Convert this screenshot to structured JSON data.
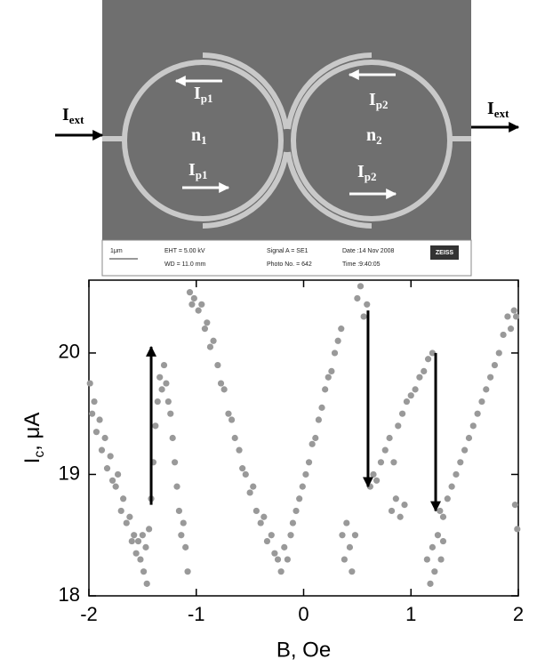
{
  "sem_image": {
    "labels": [
      {
        "main": "I",
        "sub": "ext"
      },
      {
        "main": "I",
        "sub": "p1"
      },
      {
        "main": "n",
        "sub": "1"
      },
      {
        "main": "I",
        "sub": "p1"
      },
      {
        "main": "I",
        "sub": "p2"
      },
      {
        "main": "n",
        "sub": "2"
      },
      {
        "main": "I",
        "sub": "p2"
      },
      {
        "main": "I",
        "sub": "ext"
      }
    ],
    "info": [
      "1μm",
      "EHT =  5.00 kV",
      "WD = 11.0 mm",
      "Signal A = SE1",
      "Photo No. = 642",
      "Date :14 Nov 2008",
      "Time :9:40:05",
      "ZEISS"
    ]
  },
  "chart_data": {
    "type": "scatter",
    "xlabel": "B, Oe",
    "ylabel": {
      "main": "I",
      "sub": "c",
      "rest": ", μA"
    },
    "color": "#999999",
    "xlim": [
      -2,
      2
    ],
    "ylim": [
      18,
      20.6
    ],
    "xticks": [
      -2,
      -1,
      0,
      1,
      2
    ],
    "yticks": [
      18,
      19,
      20
    ],
    "x": [
      -1.99,
      -1.97,
      -1.95,
      -1.93,
      -1.9,
      -1.88,
      -1.85,
      -1.83,
      -1.8,
      -1.78,
      -1.75,
      -1.73,
      -1.7,
      -1.68,
      -1.65,
      -1.62,
      -1.6,
      -1.58,
      -1.56,
      -1.54,
      -1.52,
      -1.5,
      -1.49,
      -1.47,
      -1.46,
      -1.44,
      -1.42,
      -1.4,
      -1.38,
      -1.36,
      -1.34,
      -1.32,
      -1.3,
      -1.28,
      -1.26,
      -1.24,
      -1.22,
      -1.2,
      -1.18,
      -1.16,
      -1.14,
      -1.12,
      -1.1,
      -1.08,
      -1.06,
      -1.04,
      -1.02,
      -0.98,
      -0.95,
      -0.92,
      -0.9,
      -0.87,
      -0.84,
      -0.8,
      -0.77,
      -0.74,
      -0.7,
      -0.67,
      -0.64,
      -0.6,
      -0.57,
      -0.54,
      -0.5,
      -0.47,
      -0.44,
      -0.4,
      -0.37,
      -0.34,
      -0.3,
      -0.27,
      -0.24,
      -0.21,
      -0.18,
      -0.15,
      -0.12,
      -0.1,
      -0.07,
      -0.04,
      -0.01,
      0.02,
      0.05,
      0.08,
      0.11,
      0.14,
      0.17,
      0.2,
      0.23,
      0.26,
      0.29,
      0.32,
      0.35,
      0.5,
      0.53,
      0.56,
      0.59,
      0.36,
      0.38,
      0.4,
      0.43,
      0.45,
      0.48,
      0.62,
      0.65,
      0.68,
      0.72,
      0.76,
      0.8,
      0.84,
      0.88,
      0.92,
      0.96,
      1.0,
      1.04,
      1.08,
      1.12,
      1.16,
      1.2,
      0.82,
      0.86,
      0.9,
      0.94,
      1.15,
      1.18,
      1.2,
      1.22,
      1.25,
      1.28,
      1.3,
      1.27,
      1.3,
      1.34,
      1.38,
      1.42,
      1.46,
      1.5,
      1.54,
      1.58,
      1.62,
      1.66,
      1.7,
      1.74,
      1.78,
      1.82,
      1.86,
      1.9,
      1.93,
      1.96,
      1.98,
      1.97,
      1.99
    ],
    "values": [
      19.75,
      19.5,
      19.6,
      19.35,
      19.45,
      19.2,
      19.3,
      19.05,
      19.15,
      18.95,
      18.9,
      19.0,
      18.7,
      18.8,
      18.6,
      18.65,
      18.45,
      18.5,
      18.35,
      18.45,
      18.3,
      18.5,
      18.2,
      18.4,
      18.1,
      18.55,
      18.8,
      19.1,
      19.4,
      19.6,
      19.8,
      19.7,
      19.9,
      19.75,
      19.6,
      19.5,
      19.3,
      19.1,
      18.9,
      18.7,
      18.5,
      18.6,
      18.4,
      18.2,
      20.5,
      20.4,
      20.45,
      20.35,
      20.4,
      20.2,
      20.25,
      20.05,
      20.1,
      19.9,
      19.75,
      19.7,
      19.5,
      19.45,
      19.3,
      19.2,
      19.05,
      19.0,
      18.85,
      18.9,
      18.7,
      18.6,
      18.65,
      18.45,
      18.5,
      18.35,
      18.3,
      18.2,
      18.4,
      18.3,
      18.5,
      18.6,
      18.7,
      18.8,
      18.9,
      19.0,
      19.1,
      19.25,
      19.3,
      19.45,
      19.55,
      19.7,
      19.8,
      19.85,
      20.0,
      20.1,
      20.2,
      20.45,
      20.55,
      20.3,
      20.4,
      18.5,
      18.3,
      18.6,
      18.4,
      18.2,
      18.5,
      18.9,
      19.0,
      18.95,
      19.1,
      19.2,
      19.3,
      19.1,
      19.4,
      19.5,
      19.6,
      19.65,
      19.7,
      19.8,
      19.85,
      19.95,
      20.0,
      18.7,
      18.8,
      18.65,
      18.75,
      18.3,
      18.1,
      18.4,
      18.2,
      18.5,
      18.3,
      18.45,
      18.7,
      18.65,
      18.8,
      18.9,
      19.0,
      19.1,
      19.2,
      19.3,
      19.4,
      19.5,
      19.6,
      19.7,
      19.8,
      19.9,
      20.0,
      20.15,
      20.3,
      20.2,
      20.35,
      20.3,
      18.75,
      18.55
    ],
    "arrows": [
      {
        "x": -1.42,
        "from": 18.75,
        "to": 20.05
      },
      {
        "x": 0.6,
        "from": 20.35,
        "to": 18.9
      },
      {
        "x": 1.23,
        "from": 20.0,
        "to": 18.7
      }
    ]
  }
}
